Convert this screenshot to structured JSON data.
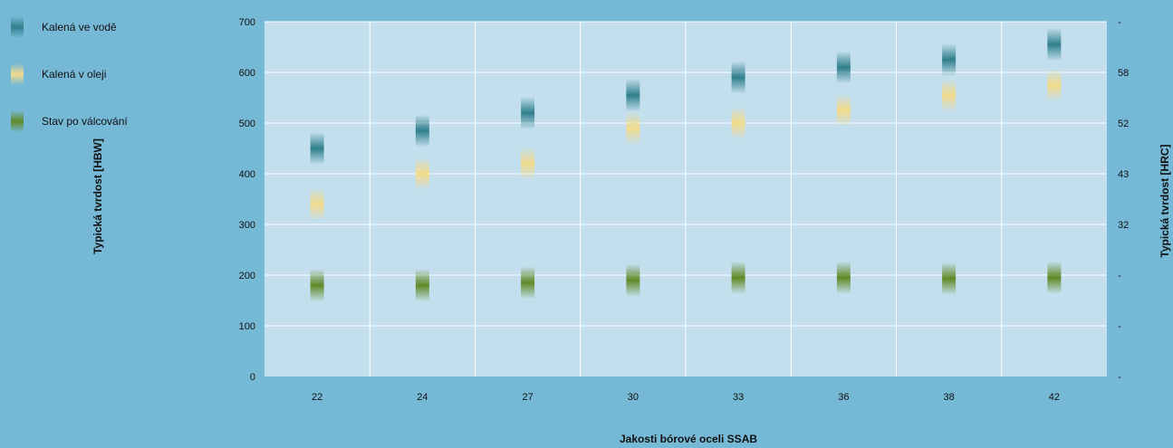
{
  "chart_data": {
    "type": "scatter",
    "categories": [
      "22",
      "24",
      "27",
      "30",
      "33",
      "36",
      "38",
      "42"
    ],
    "series": [
      {
        "name": "Kalená ve vodě",
        "color": "#2f7f8c",
        "values": [
          450,
          485,
          520,
          555,
          590,
          610,
          625,
          655
        ]
      },
      {
        "name": "Kalená v oleji",
        "color": "#f2db8c",
        "values": [
          340,
          400,
          420,
          490,
          500,
          525,
          555,
          575
        ]
      },
      {
        "name": "Stav po válcování",
        "color": "#5e8a26",
        "values": [
          180,
          180,
          185,
          190,
          195,
          195,
          193,
          195
        ]
      }
    ],
    "xlabel": "Jakosti bórové oceli SSAB",
    "ylabel": "Typická tvrdost [HBW]",
    "ylabel_right": "Typická tvrdost [HRC]",
    "ylim": [
      0,
      700
    ],
    "yticks": [
      "0",
      "100",
      "200",
      "300",
      "400",
      "500",
      "600",
      "700"
    ],
    "yticks_right": [
      "-",
      "-",
      "-",
      "32",
      "43",
      "52",
      "58",
      "-"
    ],
    "grid": true,
    "legend_position": "top-left"
  }
}
